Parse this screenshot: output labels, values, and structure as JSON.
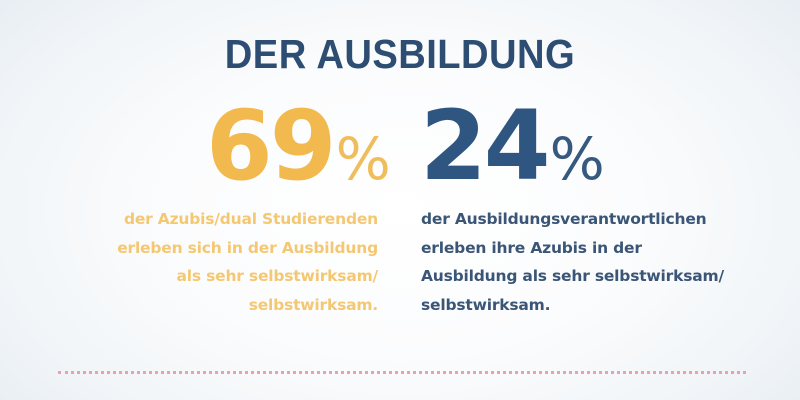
{
  "title": "DER AUSBILDUNG",
  "stats": [
    {
      "value": "69",
      "unit": "%",
      "color": "#F2B94E",
      "description_lines": [
        "der Azubis/dual Studierenden",
        "erleben sich in der Ausbildung",
        "als sehr selbstwirksam/",
        "selbstwirksam."
      ]
    },
    {
      "value": "24",
      "unit": "%",
      "color": "#2E5680",
      "description_lines": [
        "der Ausbildungsverantwortlichen",
        "erleben ihre Azubis in der",
        "Ausbildung als sehr selbstwirksam/",
        "selbstwirksam."
      ]
    }
  ],
  "divider": {
    "style": "dotted",
    "color": "#E9A3A8"
  },
  "colors": {
    "title": "#2D4E72",
    "accent_gold": "#F2B94E",
    "accent_blue": "#2E5680",
    "background_center": "#FFFFFF",
    "background_edge": "#E8EEF3"
  }
}
